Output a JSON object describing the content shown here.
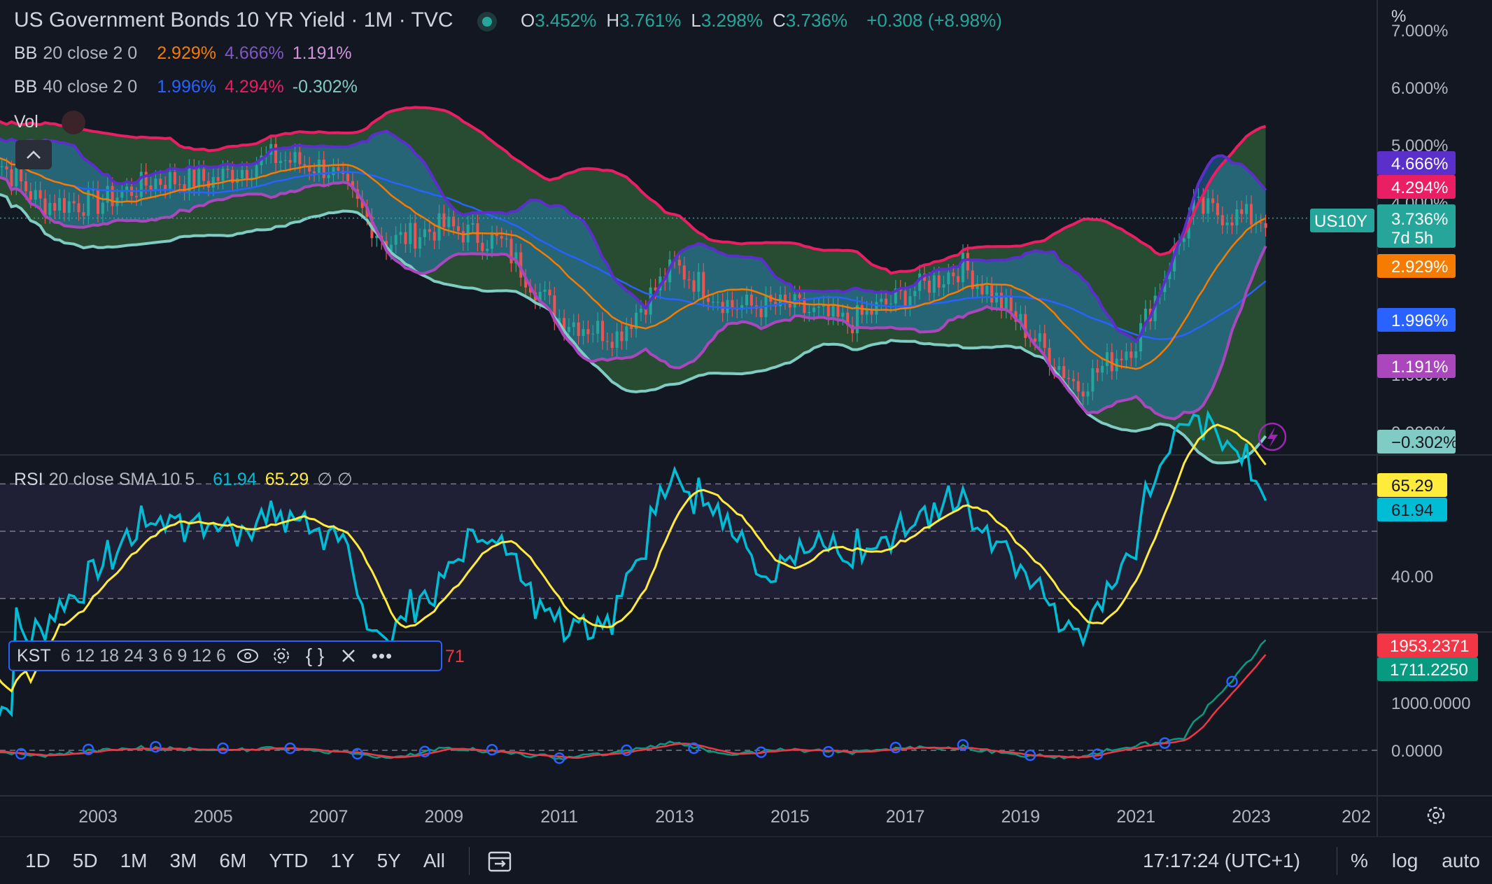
{
  "header": {
    "title": "US Government Bonds 10 YR Yield · 1M · TVC",
    "ohlc": [
      {
        "k": "O",
        "v": "3.452%"
      },
      {
        "k": "H",
        "v": "3.761%"
      },
      {
        "k": "L",
        "v": "3.298%"
      },
      {
        "k": "C",
        "v": "3.736%"
      }
    ],
    "change": "+0.308 (+8.98%)",
    "unit": "%"
  },
  "legends": {
    "bb20": {
      "label": "BB",
      "params": "20 close 2 0",
      "mid": "2.929%",
      "upper": "4.666%",
      "lower": "1.191%"
    },
    "bb40": {
      "label": "BB",
      "params": "40 close 2 0",
      "mid": "1.996%",
      "upper": "4.294%",
      "lower": "-0.302%"
    },
    "vol": "Vol",
    "rsi": {
      "label": "RSI",
      "params": "20 close SMA 10 5",
      "rsi": "61.94",
      "sma": "65.29",
      "extra": "∅ ∅"
    },
    "kst": {
      "label": "KST",
      "params": "6 12 18 24 3 6 9 12 6",
      "hidden_tail": "71"
    }
  },
  "price_axis": {
    "ticks": [
      "7.000%",
      "6.000%",
      "5.000%",
      "4.000%",
      "1.000%",
      "0.000%"
    ],
    "labels": [
      {
        "text": "4.666%",
        "bg": "#5b2fc9"
      },
      {
        "text": "4.294%",
        "bg": "#e91e63"
      },
      {
        "text": "3.736%",
        "sub": "7d 5h",
        "bg": "#26a69a",
        "tag": "US10Y"
      },
      {
        "text": "2.929%",
        "bg": "#f57c00"
      },
      {
        "text": "1.996%",
        "bg": "#2962ff"
      },
      {
        "text": "1.191%",
        "bg": "#ab47bc"
      },
      {
        "text": "−0.302%",
        "bg": "#80cbc4",
        "fg": "#131722"
      }
    ]
  },
  "rsi_axis": {
    "ticks": [
      "40.00"
    ],
    "labels": [
      {
        "text": "65.29",
        "bg": "#ffeb3b",
        "fg": "#131722"
      },
      {
        "text": "61.94",
        "bg": "#00bcd4",
        "fg": "#131722"
      }
    ]
  },
  "kst_axis": {
    "ticks": [
      "1000.0000",
      "0.0000"
    ],
    "labels": [
      {
        "text": "1953.2371",
        "bg": "#f23645"
      },
      {
        "text": "1711.2250",
        "bg": "#089981"
      }
    ]
  },
  "time_axis": [
    "2003",
    "2005",
    "2007",
    "2009",
    "2011",
    "2013",
    "2015",
    "2017",
    "2019",
    "2021",
    "2023",
    "202"
  ],
  "toolbar": {
    "timeframes": [
      "1D",
      "5D",
      "1M",
      "3M",
      "6M",
      "YTD",
      "1Y",
      "5Y",
      "All"
    ],
    "clock": "17:17:24 (UTC+1)",
    "right": [
      "%",
      "log",
      "auto"
    ]
  },
  "chart_data": {
    "type": "line",
    "title": "US Government Bonds 10 YR Yield · 1M · TVC",
    "x_range": [
      "2001",
      "2023"
    ],
    "series": [
      {
        "name": "US10Y",
        "x": [
          2001,
          2002,
          2003,
          2004,
          2005,
          2006,
          2007,
          2008,
          2009,
          2010,
          2011,
          2012,
          2013,
          2014,
          2015,
          2016,
          2017,
          2018,
          2019,
          2020,
          2021,
          2022,
          2023
        ],
        "values": [
          5.0,
          4.0,
          4.0,
          4.4,
          4.4,
          4.8,
          4.6,
          3.3,
          3.6,
          3.3,
          2.0,
          1.7,
          2.9,
          2.2,
          2.2,
          1.9,
          2.4,
          2.9,
          1.9,
          0.8,
          1.6,
          3.9,
          3.736
        ]
      }
    ],
    "ylim": [
      -0.302,
      7.0
    ],
    "bb20_last": {
      "upper": 4.666,
      "mid": 2.929,
      "lower": 1.191
    },
    "bb40_last": {
      "upper": 4.294,
      "mid": 1.996,
      "lower": -0.302
    },
    "rsi_last": {
      "rsi": 61.94,
      "sma": 65.29
    },
    "kst_last": {
      "kst": 1953.2371,
      "signal": 1711.225
    }
  }
}
